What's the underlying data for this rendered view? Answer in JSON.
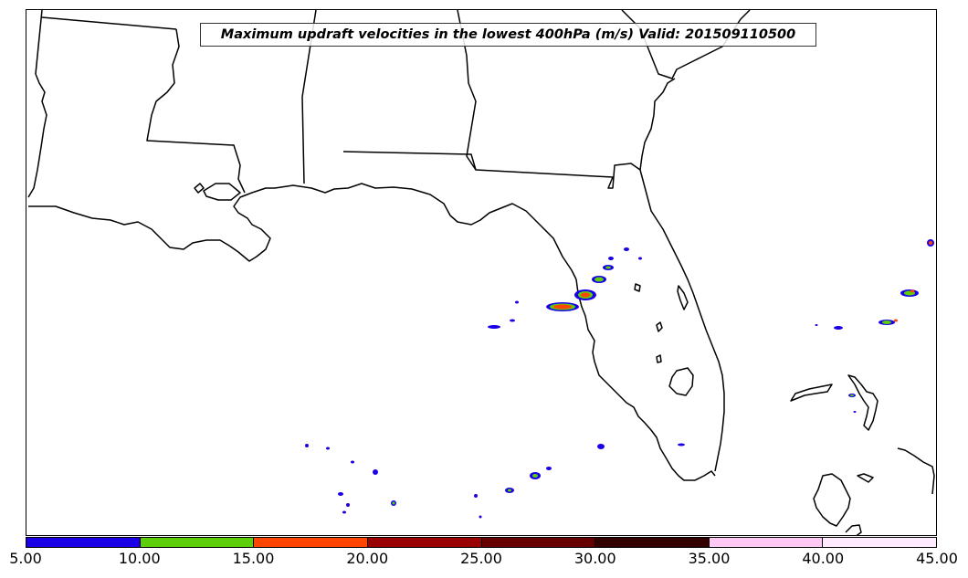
{
  "title": "Maximum updraft velocities in the lowest 400hPa (m/s) Valid: 201509110500",
  "colorbar": {
    "segments": [
      {
        "color": "#1a00e6"
      },
      {
        "color": "#5ccf0a"
      },
      {
        "color": "#ff4500"
      },
      {
        "color": "#990000"
      },
      {
        "color": "#660000"
      },
      {
        "color": "#330000"
      },
      {
        "color": "#ffc8f5"
      },
      {
        "color": "#ffeaff"
      }
    ],
    "labels": [
      "5.00",
      "10.00",
      "15.00",
      "20.00",
      "25.00",
      "30.00",
      "35.00",
      "40.00",
      "45.00"
    ]
  }
}
